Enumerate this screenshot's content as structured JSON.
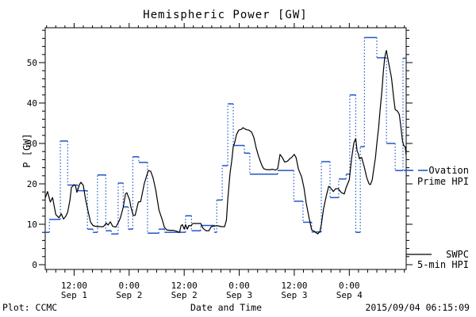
{
  "colors": {
    "ovation_blue": "#2056C8",
    "swpc_black": "#000000",
    "background": "#FFFFFF"
  },
  "header": {
    "title": "Hemispheric Power [GW]"
  },
  "footer": {
    "left": "Plot: CCMC",
    "center": "Date and Time",
    "right": "2015/09/04 06:15:09"
  },
  "legend": {
    "ovation_line1": "Ovation",
    "ovation_line2": "Prime HPI",
    "swpc_line1": "SWPC",
    "swpc_line2": "5-min HPI"
  },
  "chart_data": {
    "type": "line",
    "title": "Hemispheric Power [GW]",
    "xlabel": "Date and Time",
    "ylabel": "P [GW]",
    "x_unit": "hours since 2015-09-01 00:00",
    "xlim": [
      5.7,
      84.4
    ],
    "ylim": [
      -1.18,
      58.63
    ],
    "grid": false,
    "legend_position": "right-outside",
    "x_major_ticks": [
      {
        "t": 12,
        "line1": "12:00",
        "line2": "Sep 1"
      },
      {
        "t": 24,
        "line1": "0:00",
        "line2": "Sep 2"
      },
      {
        "t": 36,
        "line1": "12:00",
        "line2": "Sep 2"
      },
      {
        "t": 48,
        "line1": "0:00",
        "line2": "Sep 3"
      },
      {
        "t": 60,
        "line1": "12:00",
        "line2": "Sep 3"
      },
      {
        "t": 72,
        "line1": "0:00",
        "line2": "Sep 4"
      }
    ],
    "x_minor_step": 2,
    "y_major_ticks": [
      0,
      10,
      20,
      30,
      40,
      50
    ],
    "y_minor_step": 2,
    "series": [
      {
        "name": "Ovation Prime HPI",
        "color": "#2056C8",
        "style": "step",
        "points": [
          [
            5.7,
            8.0
          ],
          [
            6.6,
            11.2
          ],
          [
            9.0,
            30.6
          ],
          [
            10.6,
            19.7
          ],
          [
            12.8,
            18.3
          ],
          [
            14.9,
            8.8
          ],
          [
            16.1,
            8.0
          ],
          [
            17.1,
            22.2
          ],
          [
            18.9,
            8.4
          ],
          [
            20.1,
            7.6
          ],
          [
            21.6,
            20.2
          ],
          [
            22.7,
            14.3
          ],
          [
            23.8,
            8.8
          ],
          [
            24.8,
            26.7
          ],
          [
            26.1,
            25.3
          ],
          [
            28.0,
            7.8
          ],
          [
            30.5,
            8.8
          ],
          [
            31.7,
            8.0
          ],
          [
            36.3,
            12.1
          ],
          [
            37.6,
            8.4
          ],
          [
            39.6,
            9.7
          ],
          [
            42.6,
            8.0
          ],
          [
            43.1,
            16.0
          ],
          [
            44.3,
            24.5
          ],
          [
            45.5,
            39.8
          ],
          [
            46.7,
            29.5
          ],
          [
            49.1,
            27.6
          ],
          [
            50.3,
            22.4
          ],
          [
            56.4,
            23.3
          ],
          [
            59.9,
            15.7
          ],
          [
            61.9,
            10.5
          ],
          [
            63.8,
            8.1
          ],
          [
            65.9,
            25.5
          ],
          [
            67.8,
            16.6
          ],
          [
            69.7,
            21.2
          ],
          [
            71.3,
            22.4
          ],
          [
            72.1,
            42.0
          ],
          [
            73.4,
            8.0
          ],
          [
            74.4,
            29.2
          ],
          [
            75.3,
            56.2
          ],
          [
            78.0,
            51.2
          ],
          [
            80.1,
            30.0
          ],
          [
            82.0,
            23.3
          ],
          [
            83.7,
            51.1
          ],
          [
            84.4,
            51.1
          ]
        ]
      },
      {
        "name": "SWPC 5-min HPI",
        "color": "#000000",
        "style": "line",
        "points": [
          [
            5.7,
            16.5
          ],
          [
            6.2,
            18.1
          ],
          [
            6.8,
            15.5
          ],
          [
            7.3,
            16.6
          ],
          [
            8.0,
            12.4
          ],
          [
            8.7,
            11.6
          ],
          [
            9.2,
            12.6
          ],
          [
            9.7,
            11.3
          ],
          [
            10.2,
            12.0
          ],
          [
            10.6,
            13.0
          ],
          [
            11.1,
            16.0
          ],
          [
            11.4,
            19.1
          ],
          [
            12.0,
            19.8
          ],
          [
            12.3,
            19.5
          ],
          [
            12.6,
            17.9
          ],
          [
            13.2,
            19.9
          ],
          [
            13.5,
            20.4
          ],
          [
            14.0,
            19.6
          ],
          [
            14.5,
            16.1
          ],
          [
            15.1,
            13.0
          ],
          [
            15.6,
            10.5
          ],
          [
            16.1,
            9.7
          ],
          [
            16.6,
            9.5
          ],
          [
            17.5,
            9.4
          ],
          [
            18.4,
            9.4
          ],
          [
            19.0,
            10.3
          ],
          [
            19.4,
            9.8
          ],
          [
            19.9,
            10.6
          ],
          [
            20.4,
            9.5
          ],
          [
            21.1,
            9.3
          ],
          [
            21.8,
            10.8
          ],
          [
            22.1,
            11.6
          ],
          [
            22.7,
            14.2
          ],
          [
            23.2,
            17.5
          ],
          [
            23.5,
            17.8
          ],
          [
            24.1,
            16.0
          ],
          [
            24.4,
            14.2
          ],
          [
            24.9,
            12.2
          ],
          [
            25.3,
            12.2
          ],
          [
            26.0,
            15.5
          ],
          [
            26.5,
            15.6
          ],
          [
            27.3,
            20.1
          ],
          [
            27.9,
            22.3
          ],
          [
            28.2,
            23.3
          ],
          [
            28.7,
            23.1
          ],
          [
            29.2,
            21.5
          ],
          [
            29.8,
            18.5
          ],
          [
            30.5,
            13.5
          ],
          [
            31.2,
            11.2
          ],
          [
            31.7,
            9.2
          ],
          [
            32.2,
            8.6
          ],
          [
            32.9,
            8.5
          ],
          [
            33.6,
            8.5
          ],
          [
            34.3,
            8.3
          ],
          [
            35.0,
            8.0
          ],
          [
            35.3,
            9.6
          ],
          [
            35.6,
            9.9
          ],
          [
            36.0,
            8.8
          ],
          [
            36.3,
            9.9
          ],
          [
            36.7,
            8.8
          ],
          [
            37.0,
            9.7
          ],
          [
            37.4,
            9.6
          ],
          [
            37.9,
            10.2
          ],
          [
            38.8,
            10.2
          ],
          [
            39.6,
            10.2
          ],
          [
            40.1,
            9.0
          ],
          [
            40.7,
            8.4
          ],
          [
            41.4,
            8.4
          ],
          [
            41.9,
            9.4
          ],
          [
            42.6,
            9.6
          ],
          [
            43.4,
            9.6
          ],
          [
            44.1,
            9.4
          ],
          [
            44.8,
            9.4
          ],
          [
            45.2,
            11.0
          ],
          [
            45.5,
            16.1
          ],
          [
            46.0,
            22.7
          ],
          [
            46.4,
            26.0
          ],
          [
            46.7,
            29.2
          ],
          [
            47.0,
            30.2
          ],
          [
            47.4,
            32.2
          ],
          [
            47.9,
            33.3
          ],
          [
            48.5,
            33.5
          ],
          [
            48.8,
            33.9
          ],
          [
            49.1,
            33.7
          ],
          [
            49.6,
            33.4
          ],
          [
            50.1,
            33.3
          ],
          [
            50.7,
            32.8
          ],
          [
            51.2,
            31.4
          ],
          [
            51.7,
            28.9
          ],
          [
            52.2,
            26.9
          ],
          [
            52.7,
            25.3
          ],
          [
            53.1,
            24.2
          ],
          [
            53.4,
            23.7
          ],
          [
            54.0,
            23.5
          ],
          [
            54.7,
            23.5
          ],
          [
            55.3,
            23.6
          ],
          [
            55.9,
            23.4
          ],
          [
            56.4,
            23.8
          ],
          [
            56.9,
            27.3
          ],
          [
            57.4,
            26.5
          ],
          [
            57.9,
            25.4
          ],
          [
            58.5,
            25.6
          ],
          [
            59.0,
            26.2
          ],
          [
            59.5,
            26.6
          ],
          [
            60.0,
            27.3
          ],
          [
            60.4,
            26.5
          ],
          [
            60.9,
            23.7
          ],
          [
            61.6,
            21.7
          ],
          [
            62.1,
            19.1
          ],
          [
            62.6,
            15.2
          ],
          [
            63.3,
            11.2
          ],
          [
            63.8,
            8.6
          ],
          [
            64.3,
            8.3
          ],
          [
            65.1,
            7.6
          ],
          [
            65.6,
            8.2
          ],
          [
            65.9,
            9.9
          ],
          [
            66.4,
            13.9
          ],
          [
            67.0,
            17.1
          ],
          [
            67.5,
            19.4
          ],
          [
            68.0,
            18.9
          ],
          [
            68.5,
            18.1
          ],
          [
            69.0,
            18.8
          ],
          [
            69.6,
            18.8
          ],
          [
            70.3,
            17.8
          ],
          [
            70.9,
            17.5
          ],
          [
            71.3,
            19.1
          ],
          [
            72.0,
            21.0
          ],
          [
            72.5,
            26.3
          ],
          [
            73.0,
            30.2
          ],
          [
            73.4,
            31.2
          ],
          [
            73.7,
            28.2
          ],
          [
            74.0,
            27.3
          ],
          [
            74.2,
            26.2
          ],
          [
            74.7,
            26.5
          ],
          [
            75.3,
            24.0
          ],
          [
            75.8,
            21.5
          ],
          [
            76.3,
            20.0
          ],
          [
            76.6,
            19.8
          ],
          [
            77.0,
            21.0
          ],
          [
            77.3,
            23.5
          ],
          [
            77.7,
            26.5
          ],
          [
            78.0,
            30.0
          ],
          [
            78.4,
            34.0
          ],
          [
            78.7,
            38.0
          ],
          [
            79.1,
            43.0
          ],
          [
            79.4,
            47.5
          ],
          [
            79.7,
            51.0
          ],
          [
            79.9,
            52.3
          ],
          [
            80.1,
            53.0
          ],
          [
            80.2,
            52.3
          ],
          [
            80.6,
            49.8
          ],
          [
            81.2,
            46.2
          ],
          [
            81.7,
            41.0
          ],
          [
            82.0,
            38.4
          ],
          [
            82.5,
            38.0
          ],
          [
            82.9,
            37.2
          ],
          [
            83.2,
            34.5
          ],
          [
            83.6,
            30.5
          ],
          [
            83.9,
            29.4
          ],
          [
            84.2,
            29.2
          ],
          [
            84.4,
            27.0
          ]
        ]
      }
    ]
  }
}
